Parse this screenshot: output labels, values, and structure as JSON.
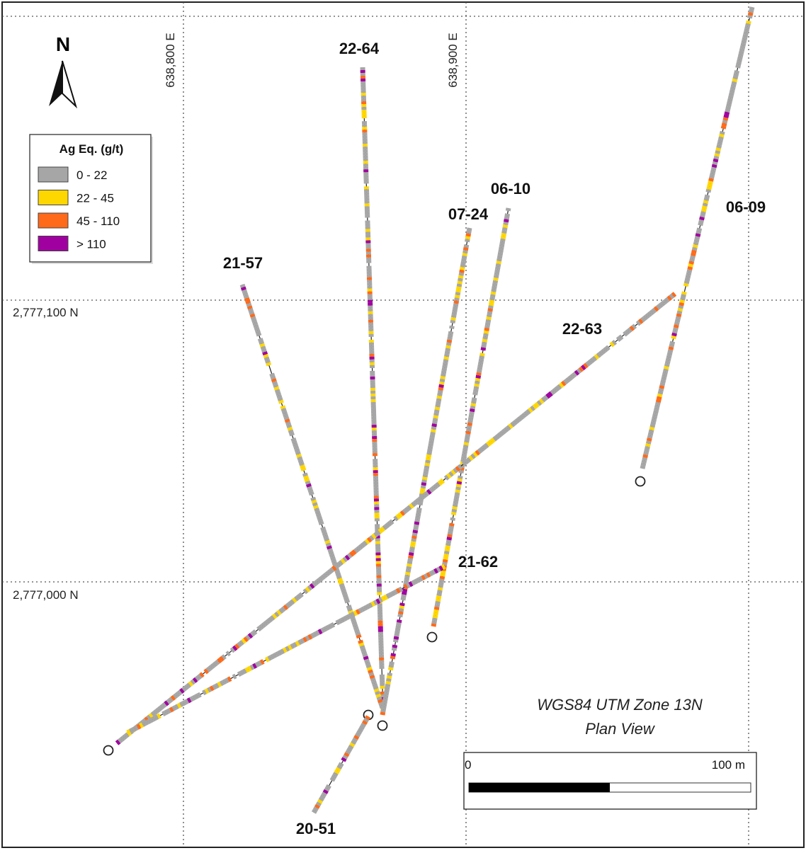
{
  "north_label": "N",
  "grid_labels": {
    "eastings": [
      "638,800 E",
      "638,900 E"
    ],
    "northings": [
      "2,777,100 N",
      "2,777,000 N"
    ]
  },
  "legend": {
    "title": "Ag Eq. (g/t)",
    "items": [
      {
        "label": "0 - 22",
        "color": "#a6a6a6"
      },
      {
        "label": "22 - 45",
        "color": "#ffd700"
      },
      {
        "label": "45 - 110",
        "color": "#ff6a1a"
      },
      {
        "label": "> 110",
        "color": "#a000a0"
      }
    ]
  },
  "drill_holes": [
    {
      "label": "22-64"
    },
    {
      "label": "21-57"
    },
    {
      "label": "07-24"
    },
    {
      "label": "06-10"
    },
    {
      "label": "06-09"
    },
    {
      "label": "22-63"
    },
    {
      "label": "21-62"
    },
    {
      "label": "20-51"
    }
  ],
  "caption": [
    "WGS84 UTM Zone 13N",
    "Plan View"
  ],
  "scale_bar": {
    "start": "0",
    "end": "100 m"
  }
}
